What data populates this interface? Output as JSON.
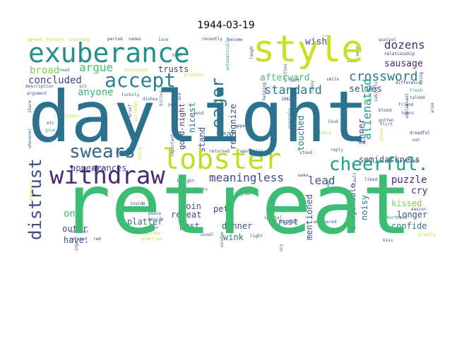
{
  "title": "1944-03-19",
  "words": {
    "retreat": "retreat",
    "daylight": "daylight",
    "exuberance": "exuberance",
    "style": "style",
    "lobster": "lobster",
    "withdraw": "withdraw",
    "accept": "accept",
    "cheerful": "cheerful.",
    "distrust": "distrust",
    "eager": "eager",
    "swears": "swears",
    "alienated": "alienated",
    "crossword": "crossword",
    "dozens": "dozens",
    "meaningless": "meaningless",
    "standard": "standard",
    "argue": "argue",
    "trusts": "trusts",
    "broad": "broad",
    "concluded": "concluded",
    "anyone": "anyone",
    "appearances": "appearances",
    "sausage": "sausage",
    "selves": "selves",
    "afterward": "afterward",
    "wish": "wish",
    "nicest": "nicest",
    "recognize": "recognize",
    "goodnight": "good-night",
    "stand": "stand",
    "yeah": "yeah",
    "touched": "touched",
    "inner": "inner",
    "lead": "lead",
    "puzzle": "puzzle",
    "semidarkness": "semidarkness",
    "cry": "cry",
    "kissed": "kissed",
    "longer": "longer",
    "confide": "confide",
    "noisy": "noisy",
    "imaginable": "imaginable",
    "mentioned": "mentioned",
    "trust": "trust",
    "pet": "pet",
    "dinner": "dinner",
    "wink": "wink",
    "coin": "coin",
    "repeat": "repeat",
    "pest": "pest",
    "platter": "platter",
    "on": "on.",
    "outer": "outer",
    "have": "have.",
    "agreed": "agreed",
    "banners": "banners",
    "starting": "starting",
    "period": "period",
    "names": "names",
    "love": "love",
    "recently": "recently",
    "become": "become",
    "quarrel": "quarrel",
    "relationship": "relationship",
    "need": "need",
    "deal": "deal",
    "discussed": "discussed",
    "grateful": "grateful",
    "back": "back",
    "description": "description",
    "smile": "smile",
    "difference": "difference",
    "argument": "argument",
    "luckily": "luckily",
    "dishes": "dishes",
    "fresh": "fresh",
    "talked": "talked",
    "loneliness": "loneliness",
    "etc": "etc",
    "give": "give",
    "brief": "brief",
    "birthday": "birthday",
    "whenever": "whenever",
    "kitty": "kitty",
    "hope": "hope",
    "important": "important",
    "open": "open",
    "apologize": "apologize",
    "returned": "returned",
    "reply": "reply",
    "stood": "stood",
    "silence": "silence",
    "blood": "blood",
    "gotten": "gotten",
    "friend": "friend",
    "tears": "tears",
    "dreadful": "dreadful",
    "eat": "eat",
    "flirt": "flirt",
    "surprised": "surprised",
    "easier": "easier",
    "shorthand": "shorthand",
    "greatly": "greatly",
    "kiss": "kiss",
    "liked": "liked",
    "whispered": "whispered",
    "tonight": "tonight",
    "hours": "hours",
    "inside": "inside",
    "beside": "beside",
    "bear": "bear",
    "peace": "peace",
    "practice": "practice",
    "various": "various",
    "usual": "usual",
    "special": "special",
    "light": "light",
    "red": "red",
    "neither": "neither",
    "refused": "refused",
    "sister": "sister",
    "glad": "glad",
    "decided": "decided",
    "left": "left",
    "hot": "hot",
    "funny": "funny",
    "standing": "standing",
    "killed": "killed",
    "subjects": "subjects",
    "seem": "seem",
    "sit": "sit",
    "feelings": "feelings",
    "whatever": "whatever",
    "year1982": "1982",
    "quarrels": "quarrels",
    "written": "written",
    "helping": "helping",
    "window": "window",
    "share": "share",
    "automatically": "automatically",
    "alone": "alone",
    "laugh": "laugh",
    "put": "put",
    "bitter": "bitter",
    "ask": "ask",
    "doing": "doing",
    "mood": "mood",
    "also": "also",
    "away": "away",
    "duty": "duty",
    "unpleasant": "unpleasant",
    "loud": "loud",
    "fault": "fault",
    "wake": "wake"
  }
}
